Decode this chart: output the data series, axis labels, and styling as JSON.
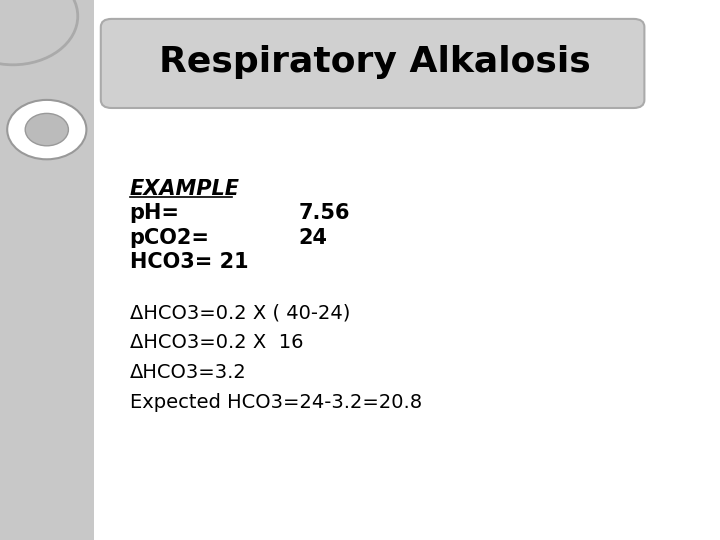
{
  "title": "Respiratory Alkalosis",
  "title_box_facecolor": "#d0d0d0",
  "bg_color": "#ffffff",
  "left_bg_color": "#c8c8c8",
  "example_label": "EXAMPLE",
  "line1_left": "pH=",
  "line1_right": "7.56",
  "line2_left": "pCO2=",
  "line2_right": "24",
  "line3": "HCO3= 21",
  "delta_line1": "ΔHCO3=0.2 X ( 40-24)",
  "delta_line2": "ΔHCO3=0.2 X  16",
  "delta_line3": "ΔHCO3=3.2",
  "delta_line4": "Expected HCO3=24-3.2=20.8",
  "font_size_title": 26,
  "font_size_body": 15,
  "font_size_example": 15
}
